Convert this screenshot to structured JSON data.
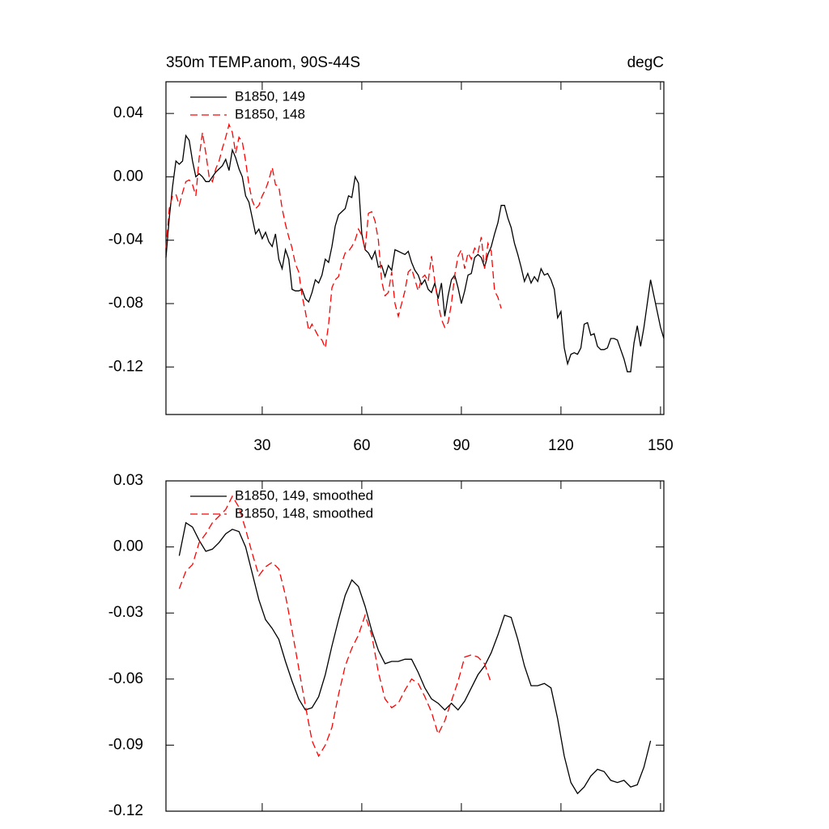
{
  "chart_data": [
    {
      "type": "line",
      "title": "350m TEMP.anom, 90S-44S",
      "units": "degC",
      "xlim": [
        1,
        151
      ],
      "ylim": [
        -0.15,
        0.06
      ],
      "xticks": [
        30,
        60,
        90,
        120,
        150
      ],
      "yticks": [
        0.04,
        {
          "value": 0,
          "label": "0.00"
        },
        -0.04,
        -0.08,
        -0.12
      ],
      "series": [
        {
          "name": "B1850, 149",
          "color": "#000000",
          "line_style": "solid",
          "x": [
            1,
            2,
            3,
            4,
            5,
            6,
            7,
            8,
            9,
            10,
            11,
            12,
            13,
            14,
            15,
            16,
            17,
            18,
            19,
            20,
            21,
            22,
            23,
            24,
            25,
            26,
            27,
            28,
            29,
            30,
            31,
            32,
            33,
            34,
            35,
            36,
            37,
            38,
            39,
            40,
            41,
            42,
            43,
            44,
            45,
            46,
            47,
            48,
            49,
            50,
            51,
            52,
            53,
            54,
            55,
            56,
            57,
            58,
            59,
            60,
            61,
            62,
            63,
            64,
            65,
            66,
            67,
            68,
            69,
            70,
            71,
            72,
            73,
            74,
            75,
            76,
            77,
            78,
            79,
            80,
            81,
            82,
            83,
            84,
            85,
            86,
            87,
            88,
            89,
            90,
            91,
            92,
            93,
            94,
            95,
            96,
            97,
            98,
            99,
            100,
            101,
            102,
            103,
            104,
            105,
            106,
            107,
            108,
            109,
            110,
            111,
            112,
            113,
            114,
            115,
            116,
            117,
            118,
            119,
            120,
            121,
            122,
            123,
            124,
            125,
            126,
            127,
            128,
            129,
            130,
            131,
            132,
            133,
            134,
            135,
            136,
            137,
            138,
            139,
            140,
            141,
            142,
            143,
            144,
            145,
            146,
            147,
            148,
            149,
            150,
            151
          ],
          "values": [
            -0.051,
            -0.026,
            -0.006,
            0.01,
            0.008,
            0.01,
            0.026,
            0.023,
            0.01,
            0.0,
            0.002,
            0.0,
            -0.003,
            -0.003,
            0.0,
            0.003,
            0.005,
            0.007,
            0.011,
            0.004,
            0.017,
            0.012,
            0.005,
            0.0,
            -0.012,
            -0.016,
            -0.026,
            -0.036,
            -0.033,
            -0.039,
            -0.035,
            -0.041,
            -0.044,
            -0.036,
            -0.052,
            -0.058,
            -0.046,
            -0.052,
            -0.071,
            -0.072,
            -0.072,
            -0.071,
            -0.077,
            -0.079,
            -0.073,
            -0.065,
            -0.067,
            -0.062,
            -0.052,
            -0.054,
            -0.044,
            -0.031,
            -0.024,
            -0.022,
            -0.02,
            -0.012,
            -0.013,
            0.0,
            -0.004,
            -0.036,
            -0.046,
            -0.048,
            -0.052,
            -0.047,
            -0.057,
            -0.056,
            -0.063,
            -0.056,
            -0.059,
            -0.046,
            -0.047,
            -0.048,
            -0.049,
            -0.047,
            -0.054,
            -0.059,
            -0.062,
            -0.068,
            -0.065,
            -0.071,
            -0.073,
            -0.067,
            -0.077,
            -0.067,
            -0.088,
            -0.075,
            -0.065,
            -0.062,
            -0.07,
            -0.08,
            -0.072,
            -0.062,
            -0.061,
            -0.051,
            -0.049,
            -0.051,
            -0.057,
            -0.049,
            -0.044,
            -0.036,
            -0.029,
            -0.018,
            -0.018,
            -0.026,
            -0.032,
            -0.042,
            -0.049,
            -0.057,
            -0.066,
            -0.061,
            -0.067,
            -0.063,
            -0.066,
            -0.058,
            -0.062,
            -0.061,
            -0.065,
            -0.071,
            -0.089,
            -0.085,
            -0.108,
            -0.118,
            -0.112,
            -0.111,
            -0.112,
            -0.108,
            -0.093,
            -0.092,
            -0.1,
            -0.099,
            -0.107,
            -0.109,
            -0.109,
            -0.108,
            -0.102,
            -0.102,
            -0.103,
            -0.109,
            -0.115,
            -0.123,
            -0.123,
            -0.105,
            -0.094,
            -0.107,
            -0.095,
            -0.08,
            -0.065,
            -0.075,
            -0.085,
            -0.095,
            -0.102
          ]
        },
        {
          "name": "B1850, 148",
          "color": "#ff0000",
          "line_style": "dashed",
          "x": [
            1,
            2,
            3,
            4,
            5,
            6,
            7,
            8,
            9,
            10,
            11,
            12,
            13,
            14,
            15,
            16,
            17,
            18,
            19,
            20,
            21,
            22,
            23,
            24,
            25,
            26,
            27,
            28,
            29,
            30,
            31,
            32,
            33,
            34,
            35,
            36,
            37,
            38,
            39,
            40,
            41,
            42,
            43,
            44,
            45,
            46,
            47,
            48,
            49,
            50,
            51,
            52,
            53,
            54,
            55,
            56,
            57,
            58,
            59,
            60,
            61,
            62,
            63,
            64,
            65,
            66,
            67,
            68,
            69,
            70,
            71,
            72,
            73,
            74,
            75,
            76,
            77,
            78,
            79,
            80,
            81,
            82,
            83,
            84,
            85,
            86,
            87,
            88,
            89,
            90,
            91,
            92,
            93,
            94,
            95,
            96,
            97,
            98,
            99,
            100,
            101,
            102
          ],
          "values": [
            -0.045,
            -0.02,
            -0.012,
            -0.011,
            -0.018,
            -0.01,
            -0.003,
            -0.002,
            -0.005,
            -0.012,
            0.012,
            0.028,
            0.015,
            0.0,
            -0.003,
            0.005,
            0.01,
            0.018,
            0.025,
            0.033,
            0.028,
            0.015,
            0.025,
            0.022,
            0.01,
            -0.005,
            -0.015,
            -0.02,
            -0.018,
            -0.012,
            -0.008,
            -0.002,
            0.006,
            -0.005,
            -0.006,
            -0.02,
            -0.03,
            -0.038,
            -0.045,
            -0.055,
            -0.06,
            -0.075,
            -0.085,
            -0.097,
            -0.093,
            -0.097,
            -0.101,
            -0.103,
            -0.108,
            -0.093,
            -0.07,
            -0.065,
            -0.063,
            -0.054,
            -0.048,
            -0.047,
            -0.044,
            -0.04,
            -0.033,
            -0.037,
            -0.046,
            -0.023,
            -0.022,
            -0.028,
            -0.04,
            -0.066,
            -0.075,
            -0.073,
            -0.06,
            -0.08,
            -0.088,
            -0.08,
            -0.072,
            -0.06,
            -0.058,
            -0.065,
            -0.072,
            -0.064,
            -0.062,
            -0.066,
            -0.05,
            -0.066,
            -0.08,
            -0.09,
            -0.095,
            -0.092,
            -0.08,
            -0.062,
            -0.05,
            -0.046,
            -0.058,
            -0.048,
            -0.052,
            -0.045,
            -0.048,
            -0.038,
            -0.058,
            -0.042,
            -0.047,
            -0.072,
            -0.076,
            -0.083
          ]
        }
      ]
    },
    {
      "type": "line",
      "xlim": [
        1,
        151
      ],
      "ylim": [
        -0.12,
        0.03
      ],
      "yticks": [
        0.03,
        {
          "value": 0,
          "label": "0.00"
        },
        -0.03,
        -0.06,
        -0.09,
        -0.12
      ],
      "series": [
        {
          "name": "B1850, 149, smoothed",
          "color": "#000000",
          "line_style": "solid",
          "x": [
            5,
            7,
            9,
            11,
            13,
            15,
            17,
            19,
            21,
            23,
            25,
            27,
            29,
            31,
            33,
            35,
            37,
            39,
            41,
            43,
            45,
            47,
            49,
            51,
            53,
            55,
            57,
            59,
            61,
            63,
            65,
            67,
            69,
            71,
            73,
            75,
            77,
            79,
            81,
            83,
            85,
            87,
            89,
            91,
            93,
            95,
            97,
            99,
            101,
            103,
            105,
            107,
            109,
            111,
            113,
            115,
            117,
            119,
            121,
            123,
            125,
            127,
            129,
            131,
            133,
            135,
            137,
            139,
            141,
            143,
            145,
            147
          ],
          "values": [
            -0.004,
            0.011,
            0.009,
            0.003,
            -0.002,
            -0.001,
            0.002,
            0.006,
            0.008,
            0.007,
            0.0,
            -0.012,
            -0.024,
            -0.033,
            -0.037,
            -0.042,
            -0.052,
            -0.061,
            -0.069,
            -0.074,
            -0.073,
            -0.068,
            -0.058,
            -0.045,
            -0.033,
            -0.022,
            -0.015,
            -0.018,
            -0.027,
            -0.038,
            -0.047,
            -0.053,
            -0.052,
            -0.052,
            -0.051,
            -0.051,
            -0.057,
            -0.064,
            -0.069,
            -0.071,
            -0.074,
            -0.071,
            -0.074,
            -0.07,
            -0.064,
            -0.058,
            -0.054,
            -0.048,
            -0.04,
            -0.031,
            -0.032,
            -0.042,
            -0.054,
            -0.063,
            -0.063,
            -0.062,
            -0.064,
            -0.078,
            -0.095,
            -0.107,
            -0.112,
            -0.109,
            -0.104,
            -0.101,
            -0.102,
            -0.106,
            -0.107,
            -0.106,
            -0.109,
            -0.108,
            -0.1,
            -0.088
          ]
        },
        {
          "name": "B1850, 148, smoothed",
          "color": "#ff0000",
          "line_style": "dashed",
          "x": [
            5,
            7,
            9,
            11,
            13,
            15,
            17,
            19,
            21,
            23,
            25,
            27,
            29,
            31,
            33,
            35,
            37,
            39,
            41,
            43,
            45,
            47,
            49,
            51,
            53,
            55,
            57,
            59,
            61,
            63,
            65,
            67,
            69,
            71,
            73,
            75,
            77,
            79,
            81,
            83,
            85,
            87,
            89,
            91,
            93,
            95,
            97,
            99
          ],
          "values": [
            -0.019,
            -0.011,
            -0.008,
            0.002,
            0.006,
            0.011,
            0.014,
            0.017,
            0.023,
            0.018,
            0.008,
            -0.003,
            -0.013,
            -0.009,
            -0.007,
            -0.01,
            -0.022,
            -0.038,
            -0.055,
            -0.072,
            -0.088,
            -0.095,
            -0.09,
            -0.082,
            -0.067,
            -0.054,
            -0.046,
            -0.04,
            -0.031,
            -0.04,
            -0.057,
            -0.069,
            -0.073,
            -0.071,
            -0.065,
            -0.06,
            -0.062,
            -0.068,
            -0.075,
            -0.085,
            -0.079,
            -0.07,
            -0.061,
            -0.05,
            -0.049,
            -0.05,
            -0.053,
            -0.062
          ]
        }
      ]
    }
  ]
}
